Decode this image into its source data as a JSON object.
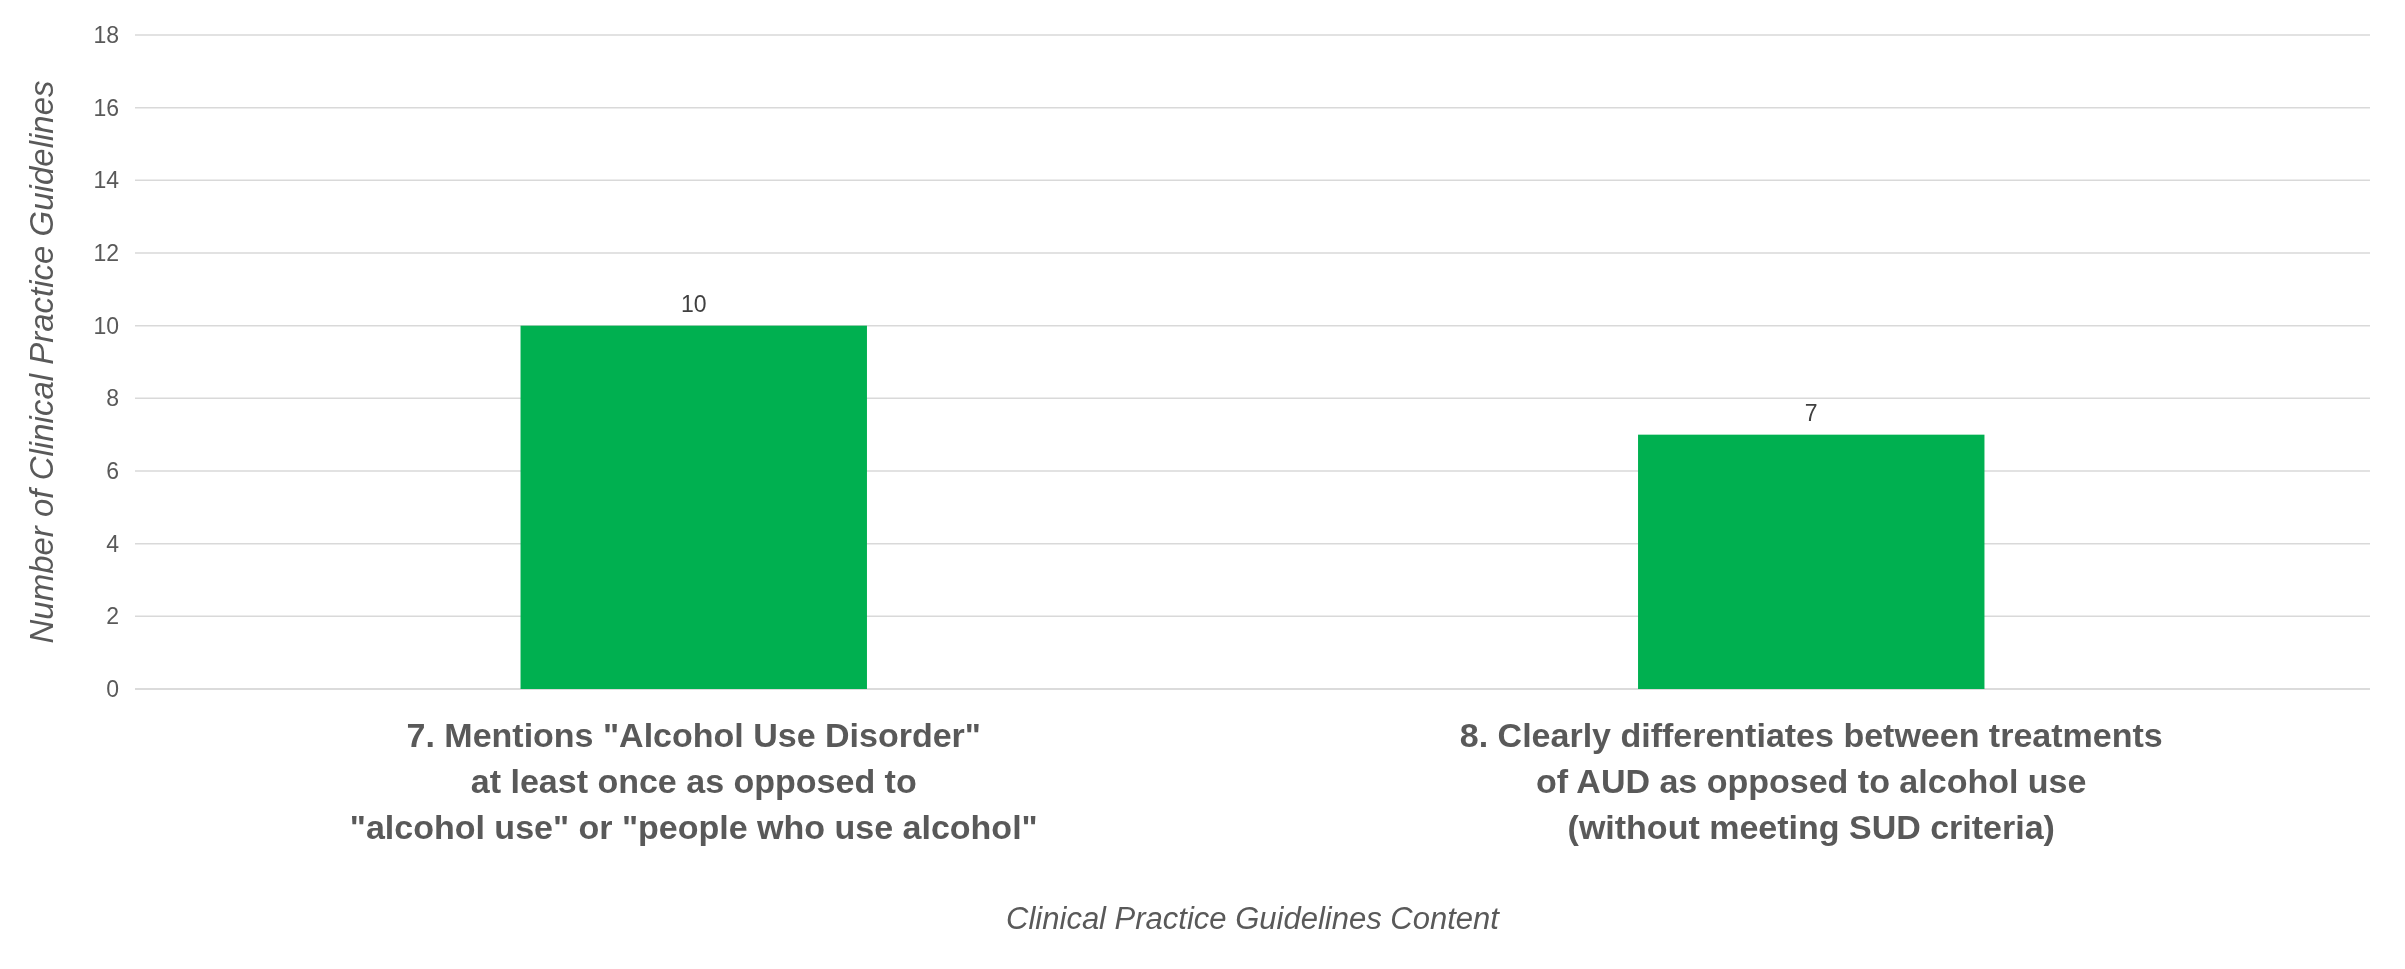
{
  "chart_data": {
    "type": "bar",
    "xlabel": "Clinical Practice Guidelines Content",
    "ylabel": "Number of Clinical Practice Guidelines",
    "categories": [
      "7. Mentions \"Alcohol Use Disorder\"\nat least once as opposed to\n\"alcohol use\" or \"people who use alcohol\"",
      "8. Clearly differentiates between treatments\nof AUD as opposed to alcohol use\n(without meeting SUD criteria)"
    ],
    "values": [
      10,
      7
    ],
    "color": "#00b050",
    "ylim": [
      0,
      18
    ],
    "yticks": [
      0,
      2,
      4,
      6,
      8,
      10,
      12,
      14,
      16,
      18
    ],
    "grid": "y",
    "data_labels": true
  }
}
